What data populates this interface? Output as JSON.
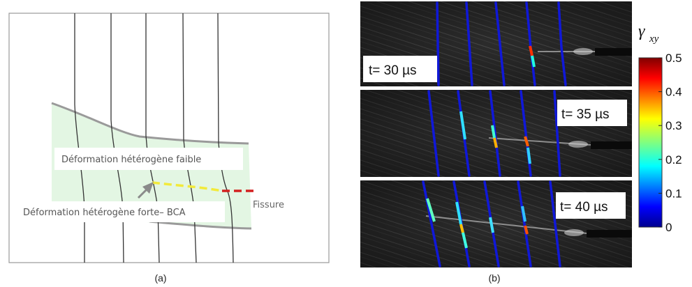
{
  "panel_a": {
    "caption": "(a)",
    "weak_zone_label": "Déformation hétérogène faible",
    "strong_zone_label": "Déformation hétérogène forte– BCA",
    "crack_label": "Fissure",
    "zone_fill_color": "#e3f6e3",
    "boundary_color": "#9a9a9a",
    "crack_color": "#d32020",
    "band_color": "#f2ea3a"
  },
  "panel_b": {
    "caption": "(b)",
    "frames": [
      {
        "time_label": "t= 30 µs"
      },
      {
        "time_label": "t= 35 µs"
      },
      {
        "time_label": "t= 40 µs"
      }
    ],
    "colorbar": {
      "symbol": "γ",
      "subscript": "xy",
      "ticks": [
        "0.5",
        "0.4",
        "0.3",
        "0.2",
        "0.1",
        "0"
      ],
      "min": 0,
      "max": 0.5
    }
  }
}
